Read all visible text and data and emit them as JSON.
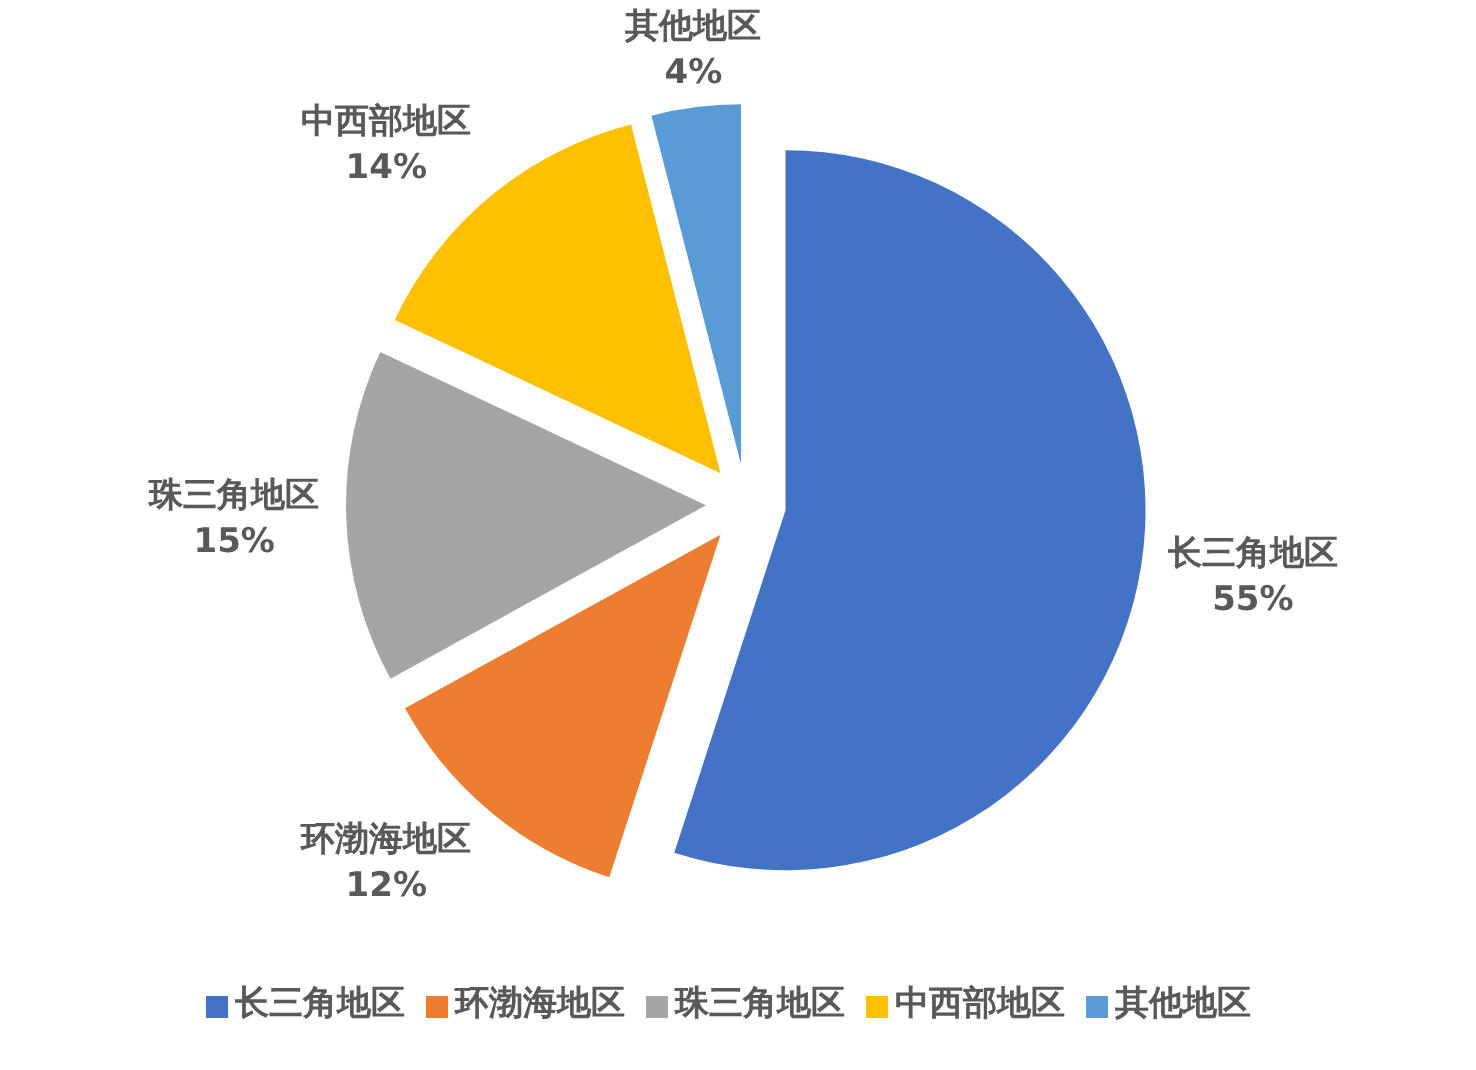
{
  "chart_data": {
    "type": "pie",
    "categories": [
      "长三角地区",
      "环渤海地区",
      "珠三角地区",
      "中西部地区",
      "其他地区"
    ],
    "values": [
      55,
      12,
      15,
      14,
      4
    ],
    "colors": [
      "#4472c4",
      "#ed7d31",
      "#a5a5a5",
      "#ffc000",
      "#5b9bd5"
    ],
    "value_labels": [
      "55%",
      "12%",
      "15%",
      "14%",
      "4%"
    ],
    "legend": "bottom"
  }
}
